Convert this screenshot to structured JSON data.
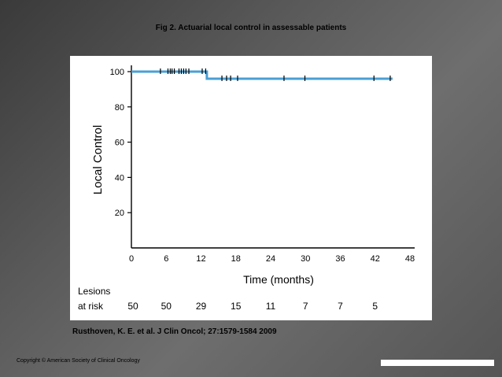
{
  "slide": {
    "title": "Fig 2. Actuarial local control in assessable patients",
    "citation": "Rusthoven, K. E. et al. J Clin Oncol; 27:1579-1584 2009",
    "copyright": "Copyright © American Society of Clinical Oncology"
  },
  "chart_data": {
    "type": "line",
    "title": "Fig 2. Actuarial local control in assessable patients",
    "xlabel": "Time (months)",
    "ylabel": "Local Control",
    "xlim": [
      0,
      48
    ],
    "ylim": [
      0,
      100
    ],
    "x_ticks": [
      0,
      6,
      12,
      18,
      24,
      30,
      36,
      42,
      48
    ],
    "y_ticks": [
      20,
      40,
      60,
      80,
      100
    ],
    "series": [
      {
        "name": "Local control",
        "color": "#4a9fd5",
        "steps": [
          {
            "x": 0,
            "y": 100
          },
          {
            "x": 13,
            "y": 100
          },
          {
            "x": 13,
            "y": 96
          },
          {
            "x": 45,
            "y": 96
          }
        ],
        "censor_times": [
          5,
          6.3,
          6.7,
          7,
          7.4,
          8.2,
          8.6,
          9,
          9.4,
          9.9,
          12.2,
          12.8,
          15.6,
          16.4,
          17.1,
          18.3,
          26.3,
          29.9,
          41.8,
          44.6
        ]
      }
    ],
    "risk_table": {
      "label_line1": "Lesions",
      "label_line2": "at risk",
      "times": [
        0,
        6,
        12,
        18,
        24,
        30,
        36,
        42
      ],
      "counts": [
        50,
        50,
        29,
        15,
        11,
        7,
        7,
        5
      ]
    }
  },
  "colors": {
    "curve": "#4a9fd5",
    "axis": "#000000"
  }
}
